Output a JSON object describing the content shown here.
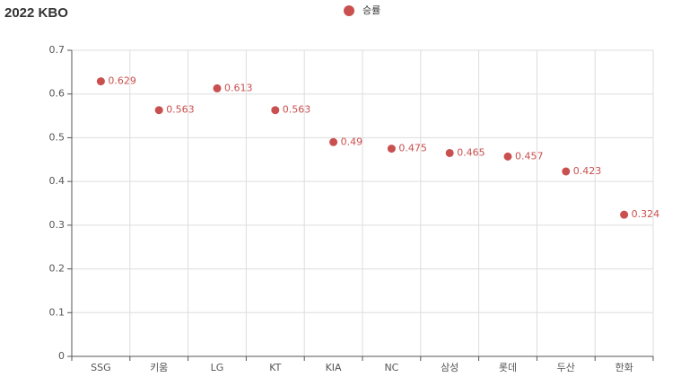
{
  "chart_data": {
    "type": "scatter",
    "title": "2022 KBO",
    "categories": [
      "SSG",
      "키움",
      "LG",
      "KT",
      "KIA",
      "NC",
      "삼성",
      "롯데",
      "두산",
      "한화"
    ],
    "series": [
      {
        "name": "승률",
        "color": "#c9504f",
        "values": [
          0.629,
          0.563,
          0.613,
          0.563,
          0.49,
          0.475,
          0.465,
          0.457,
          0.423,
          0.324
        ]
      }
    ],
    "ylim": [
      0,
      0.7
    ],
    "yticks": [
      0,
      0.1,
      0.2,
      0.3,
      0.4,
      0.5,
      0.6,
      0.7
    ],
    "grid": true
  }
}
